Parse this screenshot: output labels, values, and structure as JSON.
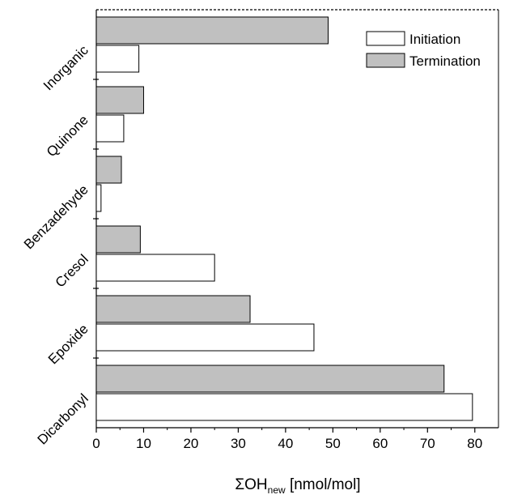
{
  "chart_data": {
    "type": "bar",
    "orientation": "horizontal",
    "categories": [
      "Inorganic",
      "Quinone",
      "Benzadehyde",
      "Cresol",
      "Epoxide",
      "Dicarbonyl"
    ],
    "series": [
      {
        "name": "Initiation",
        "color": "#ffffff",
        "values": [
          9,
          5.8,
          1.0,
          25,
          46,
          79.5
        ]
      },
      {
        "name": "Termination",
        "color": "#c0c0c0",
        "values": [
          49,
          10,
          5.3,
          9.3,
          32.5,
          73.5
        ]
      }
    ],
    "xlim": [
      0,
      85
    ],
    "xticks": [
      0,
      10,
      20,
      30,
      40,
      50,
      60,
      70,
      80
    ],
    "xlabel": {
      "main": "ΣOH",
      "subscript": "new",
      "unit": " [nmol/mol]"
    },
    "ylabel": "",
    "title": "",
    "legend_position": "top-right",
    "grid": false
  }
}
